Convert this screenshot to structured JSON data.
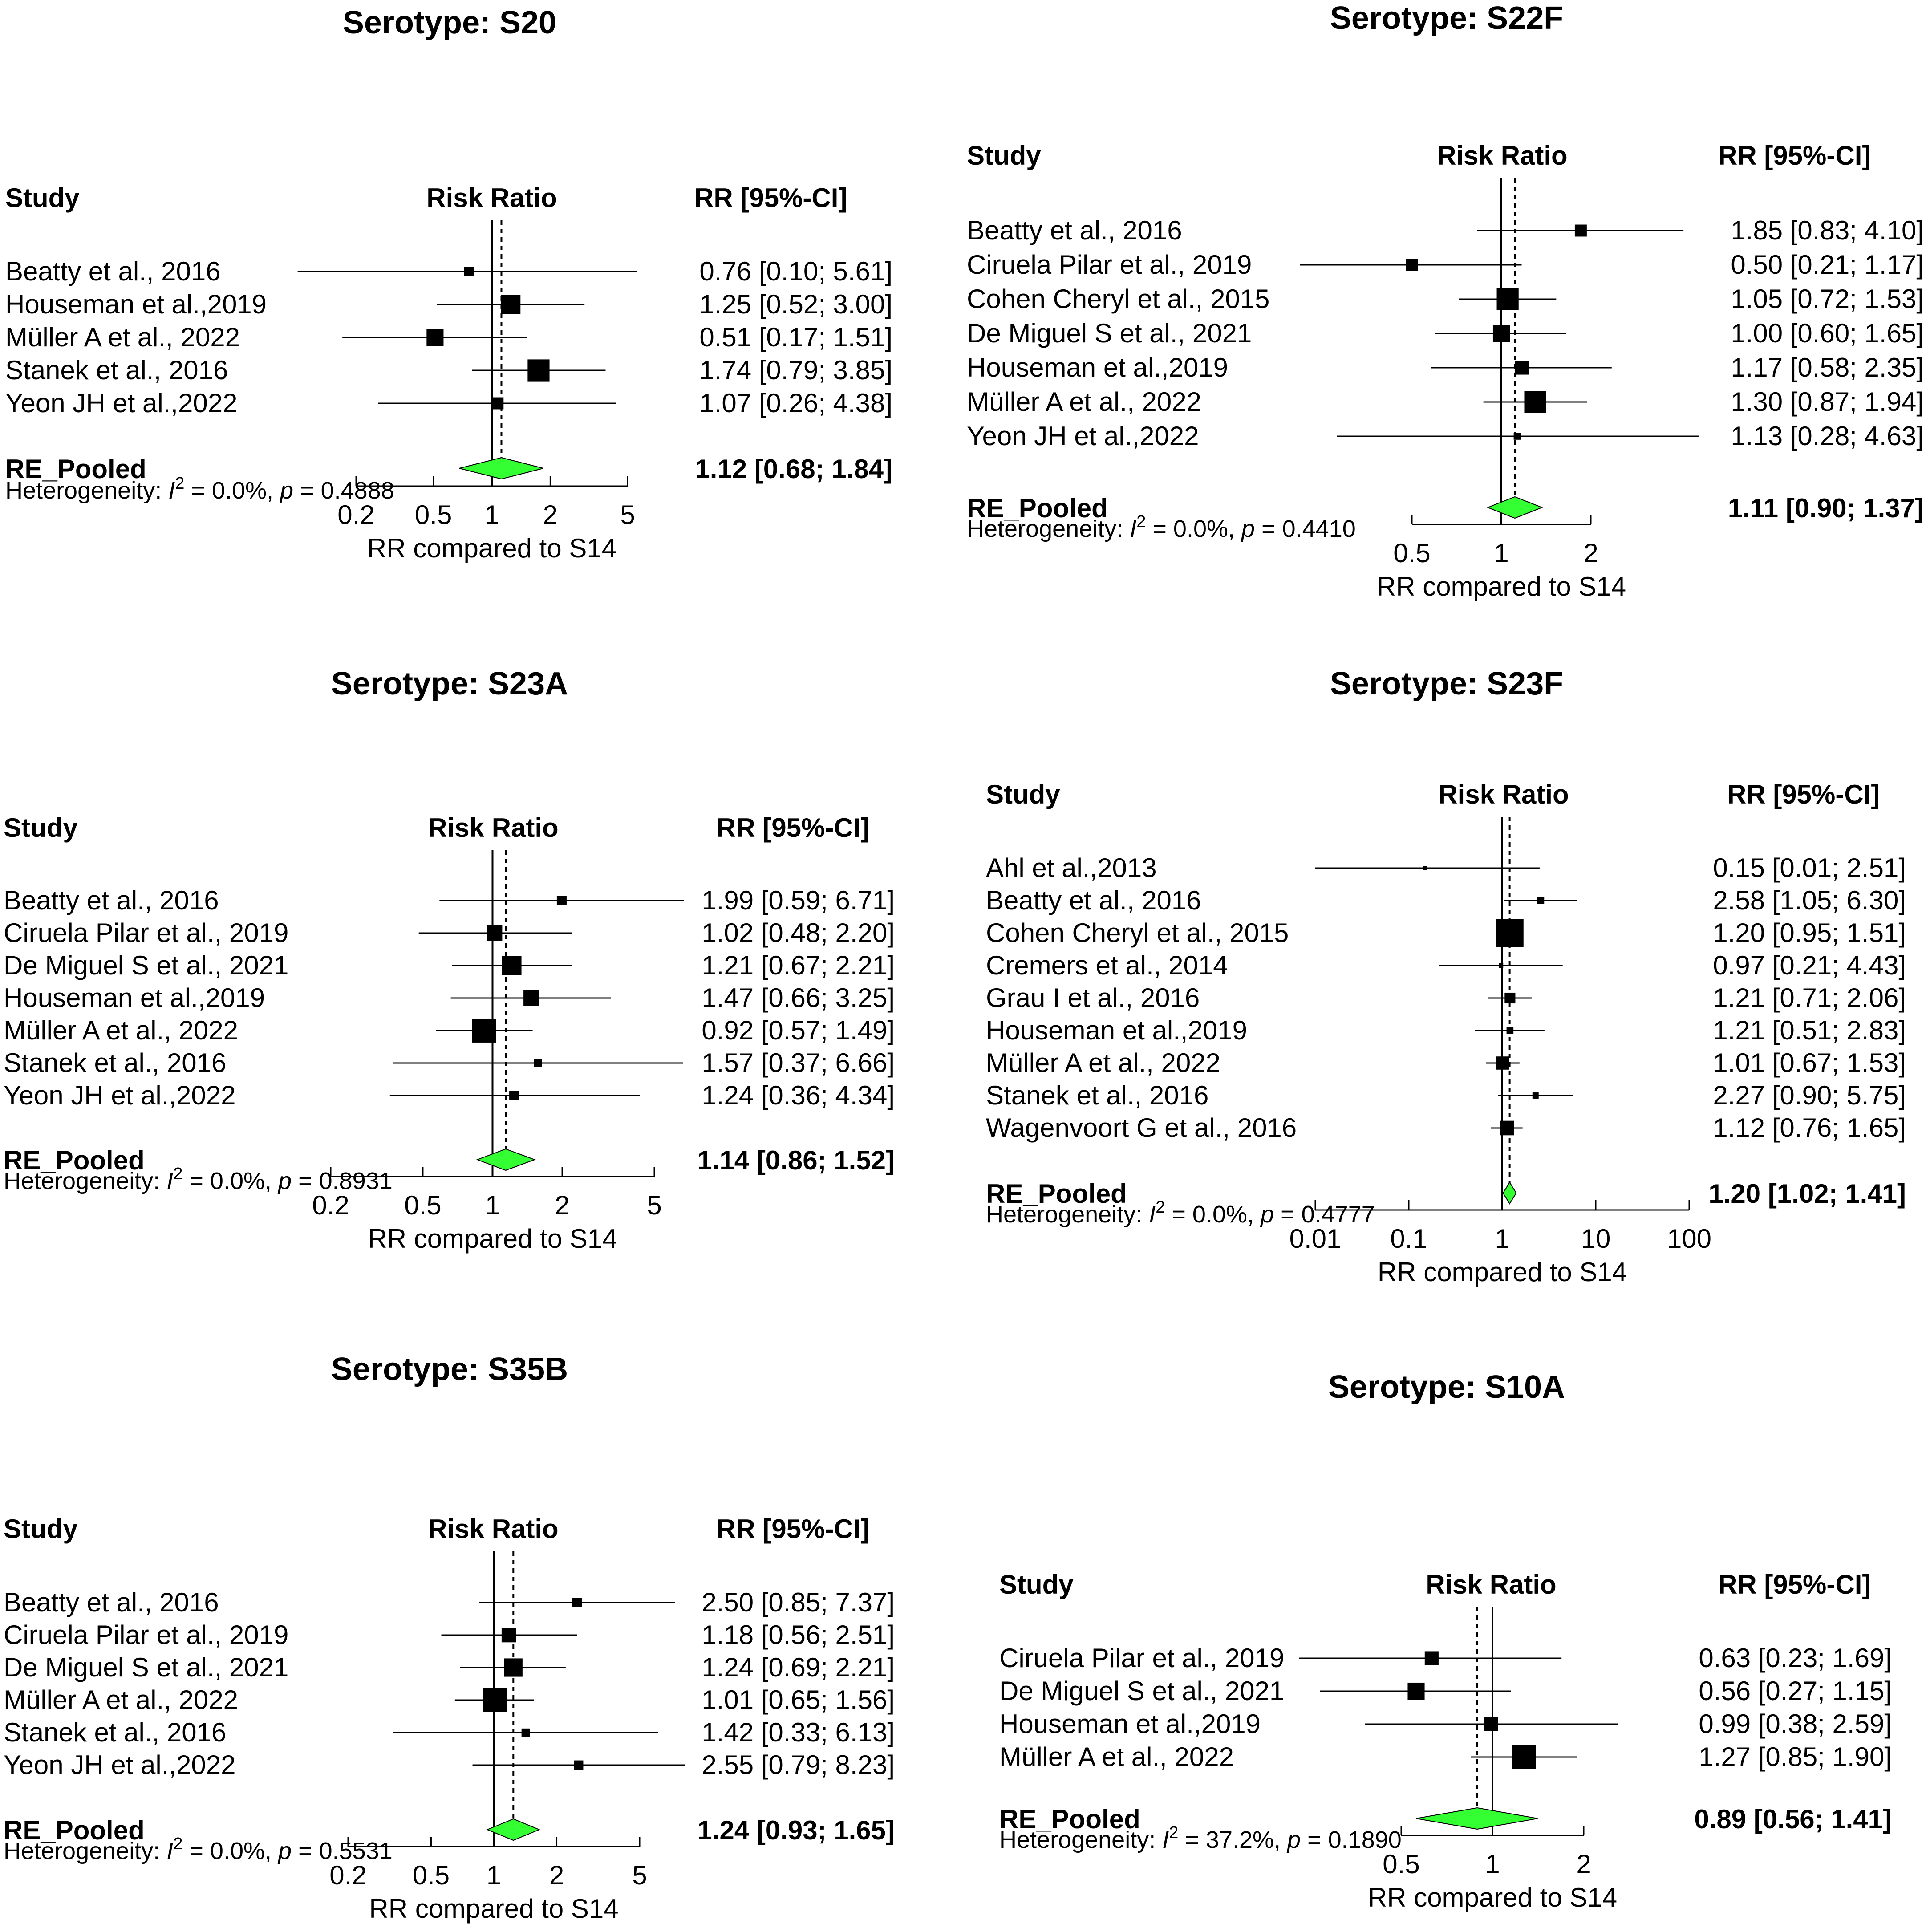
{
  "colors": {
    "pooled_fill": "#33ff33",
    "marker": "#000000"
  },
  "chart_data": [
    {
      "type": "forest",
      "title": "Serotype: S20",
      "headers": {
        "study": "Study",
        "effect": "Risk Ratio",
        "ci": "RR [95%-CI]"
      },
      "xlabel": "RR compared to S14",
      "ticks": [
        0.2,
        0.5,
        1,
        2,
        5
      ],
      "tick_labels": [
        "0.2",
        "0.5",
        "1",
        "2",
        "5"
      ],
      "xlim": [
        0.2,
        5
      ],
      "studies": [
        {
          "name": "Beatty et al., 2016",
          "rr": 0.76,
          "lo": 0.1,
          "hi": 5.61,
          "ci_text": "0.76 [0.10; 5.61]",
          "weight": 1
        },
        {
          "name": "Houseman et al.,2019",
          "rr": 1.25,
          "lo": 0.52,
          "hi": 3.0,
          "ci_text": "1.25 [0.52; 3.00]",
          "weight": 4
        },
        {
          "name": "Müller A et al., 2022",
          "rr": 0.51,
          "lo": 0.17,
          "hi": 1.51,
          "ci_text": "0.51 [0.17; 1.51]",
          "weight": 3
        },
        {
          "name": "Stanek et al., 2016",
          "rr": 1.74,
          "lo": 0.79,
          "hi": 3.85,
          "ci_text": "1.74 [0.79; 3.85]",
          "weight": 5
        },
        {
          "name": "Yeon JH et al.,2022",
          "rr": 1.07,
          "lo": 0.26,
          "hi": 4.38,
          "ci_text": "1.07 [0.26; 4.38]",
          "weight": 1.5
        }
      ],
      "pooled": {
        "label": "RE_Pooled",
        "rr": 1.12,
        "lo": 0.68,
        "hi": 1.84,
        "ci_text": "1.12 [0.68; 1.84]"
      },
      "heterogeneity": {
        "prefix": "Heterogeneity: ",
        "i2": "= 0.0%, ",
        "p": "= 0.4888"
      }
    },
    {
      "type": "forest",
      "title": "Serotype: S22F",
      "headers": {
        "study": "Study",
        "effect": "Risk Ratio",
        "ci": "RR [95%-CI]"
      },
      "xlabel": "RR compared to S14",
      "ticks": [
        0.5,
        1,
        2
      ],
      "tick_labels": [
        "0.5",
        "1",
        "2"
      ],
      "xlim": [
        0.5,
        2
      ],
      "studies": [
        {
          "name": "Beatty et al., 2016",
          "rr": 1.85,
          "lo": 0.83,
          "hi": 4.1,
          "ci_text": "1.85 [0.83; 4.10]",
          "weight": 1.5
        },
        {
          "name": "Ciruela Pilar et al., 2019",
          "rr": 0.5,
          "lo": 0.21,
          "hi": 1.17,
          "ci_text": "0.50 [0.21; 1.17]",
          "weight": 1.5
        },
        {
          "name": "Cohen Cheryl et al., 2015",
          "rr": 1.05,
          "lo": 0.72,
          "hi": 1.53,
          "ci_text": "1.05 [0.72; 1.53]",
          "weight": 5
        },
        {
          "name": "De Miguel S et al., 2021",
          "rr": 1.0,
          "lo": 0.6,
          "hi": 1.65,
          "ci_text": "1.00 [0.60; 1.65]",
          "weight": 3
        },
        {
          "name": "Houseman et al.,2019",
          "rr": 1.17,
          "lo": 0.58,
          "hi": 2.35,
          "ci_text": "1.17 [0.58; 2.35]",
          "weight": 2
        },
        {
          "name": "Müller A et al., 2022",
          "rr": 1.3,
          "lo": 0.87,
          "hi": 1.94,
          "ci_text": "1.30 [0.87; 1.94]",
          "weight": 5
        },
        {
          "name": "Yeon JH et al.,2022",
          "rr": 1.13,
          "lo": 0.28,
          "hi": 4.63,
          "ci_text": "1.13 [0.28; 4.63]",
          "weight": 0.5
        }
      ],
      "pooled": {
        "label": "RE_Pooled",
        "rr": 1.11,
        "lo": 0.9,
        "hi": 1.37,
        "ci_text": "1.11 [0.90; 1.37]"
      },
      "heterogeneity": {
        "prefix": "Heterogeneity: ",
        "i2": "= 0.0%, ",
        "p": "= 0.4410"
      }
    },
    {
      "type": "forest",
      "title": "Serotype: S23A",
      "headers": {
        "study": "Study",
        "effect": "Risk Ratio",
        "ci": "RR [95%-CI]"
      },
      "xlabel": "RR compared to S14",
      "ticks": [
        0.2,
        0.5,
        1,
        2,
        5
      ],
      "tick_labels": [
        "0.2",
        "0.5",
        "1",
        "2",
        "5"
      ],
      "xlim": [
        0.2,
        5
      ],
      "studies": [
        {
          "name": "Beatty et al., 2016",
          "rr": 1.99,
          "lo": 0.59,
          "hi": 6.71,
          "ci_text": "1.99 [0.59; 6.71]",
          "weight": 1
        },
        {
          "name": "Ciruela Pilar et al., 2019",
          "rr": 1.02,
          "lo": 0.48,
          "hi": 2.2,
          "ci_text": "1.02 [0.48; 2.20]",
          "weight": 2.5
        },
        {
          "name": "De Miguel S et al., 2021",
          "rr": 1.21,
          "lo": 0.67,
          "hi": 2.21,
          "ci_text": "1.21 [0.67; 2.21]",
          "weight": 4
        },
        {
          "name": "Houseman et al.,2019",
          "rr": 1.47,
          "lo": 0.66,
          "hi": 3.25,
          "ci_text": "1.47 [0.66; 3.25]",
          "weight": 2.5
        },
        {
          "name": "Müller A et al., 2022",
          "rr": 0.92,
          "lo": 0.57,
          "hi": 1.49,
          "ci_text": "0.92 [0.57; 1.49]",
          "weight": 6
        },
        {
          "name": "Stanek et al., 2016",
          "rr": 1.57,
          "lo": 0.37,
          "hi": 6.66,
          "ci_text": "1.57 [0.37; 6.66]",
          "weight": 0.7
        },
        {
          "name": "Yeon JH et al.,2022",
          "rr": 1.24,
          "lo": 0.36,
          "hi": 4.34,
          "ci_text": "1.24 [0.36; 4.34]",
          "weight": 1
        }
      ],
      "pooled": {
        "label": "RE_Pooled",
        "rr": 1.14,
        "lo": 0.86,
        "hi": 1.52,
        "ci_text": "1.14 [0.86; 1.52]"
      },
      "heterogeneity": {
        "prefix": "Heterogeneity: ",
        "i2": "= 0.0%, ",
        "p": "= 0.8931"
      }
    },
    {
      "type": "forest",
      "title": "Serotype: S23F",
      "headers": {
        "study": "Study",
        "effect": "Risk Ratio",
        "ci": "RR [95%-CI]"
      },
      "xlabel": "RR compared to S14",
      "ticks": [
        0.01,
        0.1,
        1,
        10,
        100
      ],
      "tick_labels": [
        "0.01",
        "0.1",
        "1",
        "10",
        "100"
      ],
      "xlim": [
        0.01,
        100
      ],
      "studies": [
        {
          "name": "Ahl et al.,2013",
          "rr": 0.15,
          "lo": 0.01,
          "hi": 2.51,
          "ci_text": "0.15 [0.01; 2.51]",
          "weight": 0.1
        },
        {
          "name": "Beatty et al., 2016",
          "rr": 2.58,
          "lo": 1.05,
          "hi": 6.3,
          "ci_text": "2.58 [1.05; 6.30]",
          "weight": 0.5
        },
        {
          "name": "Cohen Cheryl et al., 2015",
          "rr": 1.2,
          "lo": 0.95,
          "hi": 1.51,
          "ci_text": "1.20 [0.95; 1.51]",
          "weight": 8
        },
        {
          "name": "Cremers et al., 2014",
          "rr": 0.97,
          "lo": 0.21,
          "hi": 4.43,
          "ci_text": "0.97 [0.21; 4.43]",
          "weight": 0.1
        },
        {
          "name": "Grau I et al., 2016",
          "rr": 1.21,
          "lo": 0.71,
          "hi": 2.06,
          "ci_text": "1.21 [0.71; 2.06]",
          "weight": 1.2
        },
        {
          "name": "Houseman et al.,2019",
          "rr": 1.21,
          "lo": 0.51,
          "hi": 2.83,
          "ci_text": "1.21 [0.51; 2.83]",
          "weight": 0.5
        },
        {
          "name": "Müller A et al., 2022",
          "rr": 1.01,
          "lo": 0.67,
          "hi": 1.53,
          "ci_text": "1.01 [0.67; 1.53]",
          "weight": 1.8
        },
        {
          "name": "Stanek et al., 2016",
          "rr": 2.27,
          "lo": 0.9,
          "hi": 5.75,
          "ci_text": "2.27 [0.90; 5.75]",
          "weight": 0.4
        },
        {
          "name": "Wagenvoort G et al., 2016",
          "rr": 1.12,
          "lo": 0.76,
          "hi": 1.65,
          "ci_text": "1.12 [0.76; 1.65]",
          "weight": 2.2
        }
      ],
      "pooled": {
        "label": "RE_Pooled",
        "rr": 1.2,
        "lo": 1.02,
        "hi": 1.41,
        "ci_text": "1.20 [1.02; 1.41]"
      },
      "heterogeneity": {
        "prefix": "Heterogeneity: ",
        "i2": "= 0.0%, ",
        "p": "= 0.4777"
      }
    },
    {
      "type": "forest",
      "title": "Serotype: S35B",
      "headers": {
        "study": "Study",
        "effect": "Risk Ratio",
        "ci": "RR [95%-CI]"
      },
      "xlabel": "RR compared to S14",
      "ticks": [
        0.2,
        0.5,
        1,
        2,
        5
      ],
      "tick_labels": [
        "0.2",
        "0.5",
        "1",
        "2",
        "5"
      ],
      "xlim": [
        0.2,
        5
      ],
      "studies": [
        {
          "name": "Beatty et al., 2016",
          "rr": 2.5,
          "lo": 0.85,
          "hi": 7.37,
          "ci_text": "2.50 [0.85; 7.37]",
          "weight": 1
        },
        {
          "name": "Ciruela Pilar et al., 2019",
          "rr": 1.18,
          "lo": 0.56,
          "hi": 2.51,
          "ci_text": "1.18 [0.56; 2.51]",
          "weight": 2.2
        },
        {
          "name": "De Miguel S et al., 2021",
          "rr": 1.24,
          "lo": 0.69,
          "hi": 2.21,
          "ci_text": "1.24 [0.69; 2.21]",
          "weight": 3.5
        },
        {
          "name": "Müller A et al., 2022",
          "rr": 1.01,
          "lo": 0.65,
          "hi": 1.56,
          "ci_text": "1.01 [0.65; 1.56]",
          "weight": 6
        },
        {
          "name": "Stanek et al., 2016",
          "rr": 1.42,
          "lo": 0.33,
          "hi": 6.13,
          "ci_text": "1.42 [0.33; 6.13]",
          "weight": 0.7
        },
        {
          "name": "Yeon JH et al.,2022",
          "rr": 2.55,
          "lo": 0.79,
          "hi": 8.23,
          "ci_text": "2.55 [0.79; 8.23]",
          "weight": 0.9
        }
      ],
      "pooled": {
        "label": "RE_Pooled",
        "rr": 1.24,
        "lo": 0.93,
        "hi": 1.65,
        "ci_text": "1.24 [0.93; 1.65]"
      },
      "heterogeneity": {
        "prefix": "Heterogeneity: ",
        "i2": "= 0.0%, ",
        "p": "= 0.5531"
      }
    },
    {
      "type": "forest",
      "title": "Serotype: S10A",
      "headers": {
        "study": "Study",
        "effect": "Risk Ratio",
        "ci": "RR [95%-CI]"
      },
      "xlabel": "RR compared to S14",
      "ticks": [
        0.5,
        1,
        2
      ],
      "tick_labels": [
        "0.5",
        "1",
        "2"
      ],
      "xlim": [
        0.5,
        2
      ],
      "studies": [
        {
          "name": "Ciruela Pilar et al., 2019",
          "rr": 0.63,
          "lo": 0.23,
          "hi": 1.69,
          "ci_text": "0.63 [0.23; 1.69]",
          "weight": 2
        },
        {
          "name": "De Miguel S et al., 2021",
          "rr": 0.56,
          "lo": 0.27,
          "hi": 1.15,
          "ci_text": "0.56 [0.27; 1.15]",
          "weight": 3
        },
        {
          "name": "Houseman et al.,2019",
          "rr": 0.99,
          "lo": 0.38,
          "hi": 2.59,
          "ci_text": "0.99 [0.38; 2.59]",
          "weight": 2
        },
        {
          "name": "Müller A et al., 2022",
          "rr": 1.27,
          "lo": 0.85,
          "hi": 1.9,
          "ci_text": "1.27 [0.85; 1.90]",
          "weight": 6
        }
      ],
      "pooled": {
        "label": "RE_Pooled",
        "rr": 0.89,
        "lo": 0.56,
        "hi": 1.41,
        "ci_text": "0.89 [0.56; 1.41]"
      },
      "heterogeneity": {
        "prefix": "Heterogeneity: ",
        "i2": "= 37.2%, ",
        "p": "= 0.1890"
      }
    }
  ]
}
